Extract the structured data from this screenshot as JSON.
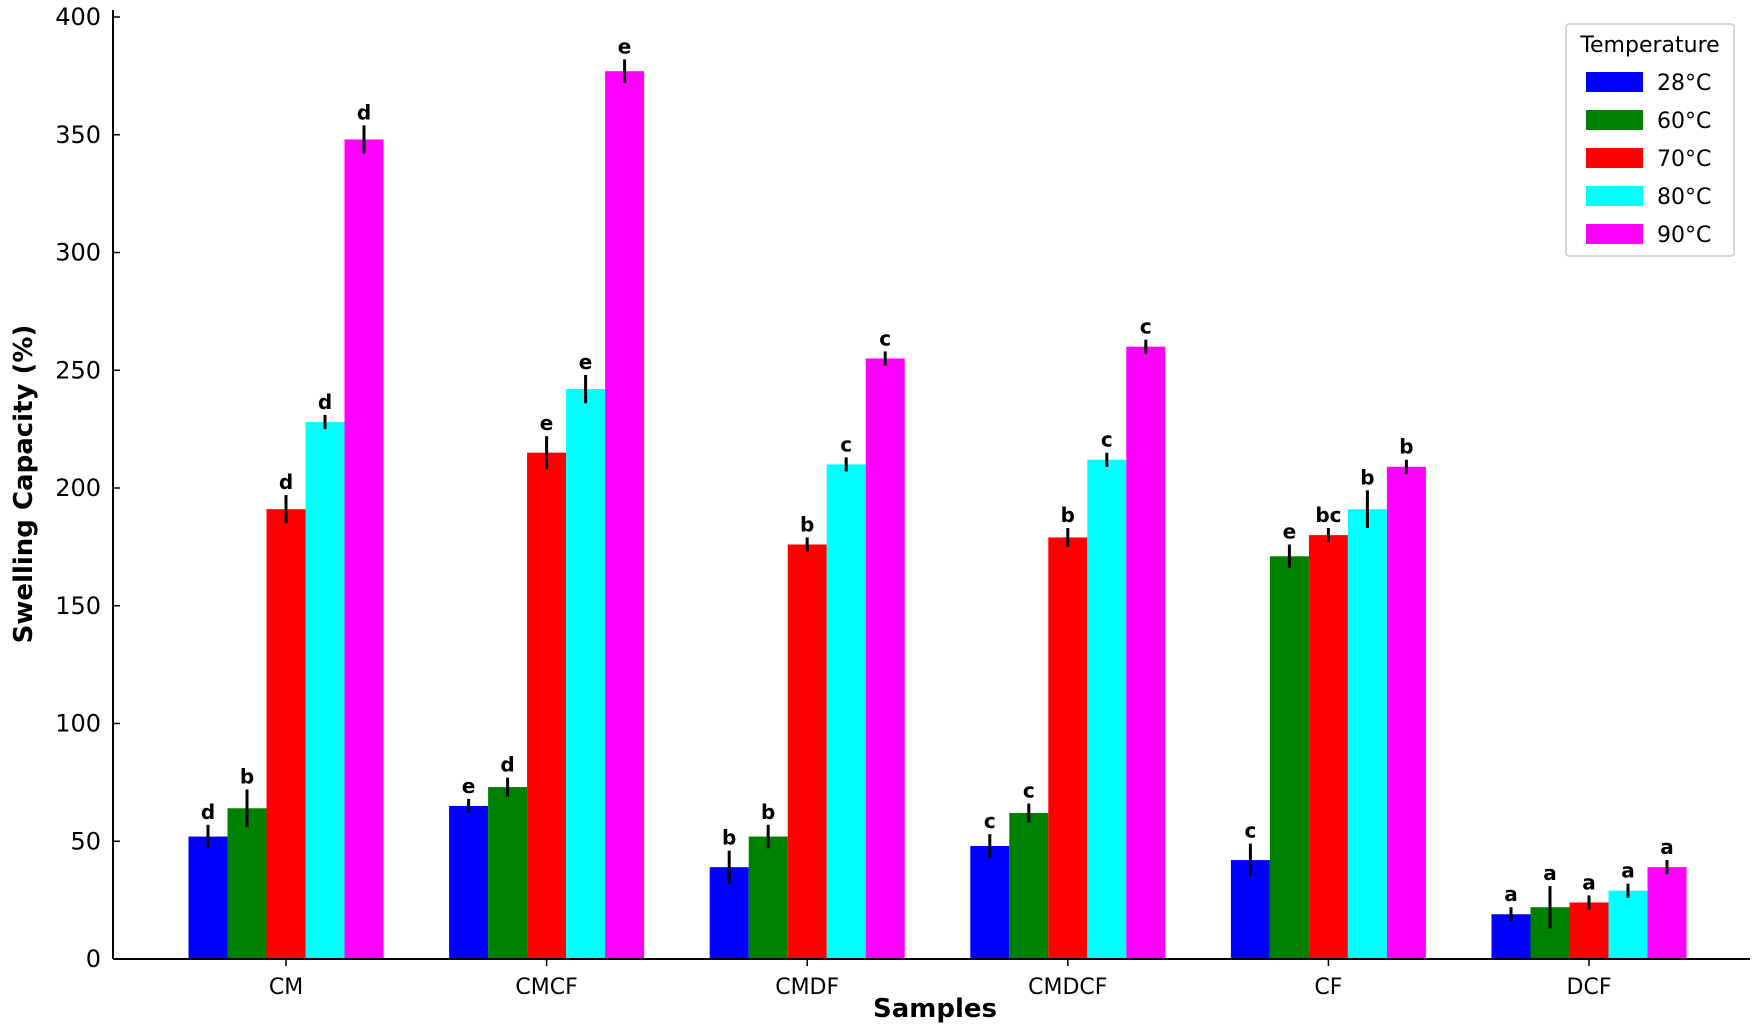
{
  "chart_data": {
    "type": "bar",
    "xlabel": "Samples",
    "ylabel": "Swelling Capacity (%)",
    "ylim": [
      0,
      400
    ],
    "yticks": [
      0,
      50,
      100,
      150,
      200,
      250,
      300,
      350,
      400
    ],
    "categories": [
      "CM",
      "CMCF",
      "CMDF",
      "CMDCF",
      "CF",
      "DCF"
    ],
    "legend": {
      "title": "Temperature",
      "placement": "top-right"
    },
    "grid": false,
    "series": [
      {
        "name": "28°C",
        "color": "#0000ff",
        "values": [
          52,
          65,
          39,
          48,
          42,
          19
        ],
        "errors": [
          5,
          3,
          7,
          5,
          7,
          3
        ],
        "labels": [
          "d",
          "e",
          "b",
          "c",
          "c",
          "a"
        ]
      },
      {
        "name": "60°C",
        "color": "#008000",
        "values": [
          64,
          73,
          52,
          62,
          171,
          22
        ],
        "errors": [
          8,
          4,
          5,
          4,
          5,
          9
        ],
        "labels": [
          "b",
          "d",
          "b",
          "c",
          "e",
          "a"
        ]
      },
      {
        "name": "70°C",
        "color": "#ff0000",
        "values": [
          191,
          215,
          176,
          179,
          180,
          24
        ],
        "errors": [
          6,
          7,
          3,
          4,
          3,
          3
        ],
        "labels": [
          "d",
          "e",
          "b",
          "b",
          "bc",
          "a"
        ]
      },
      {
        "name": "80°C",
        "color": "#00ffff",
        "values": [
          228,
          242,
          210,
          212,
          191,
          29
        ],
        "errors": [
          3,
          6,
          3,
          3,
          8,
          3
        ],
        "labels": [
          "d",
          "e",
          "c",
          "c",
          "b",
          "a"
        ]
      },
      {
        "name": "90°C",
        "color": "#ff00ff",
        "values": [
          348,
          377,
          255,
          260,
          209,
          39
        ],
        "errors": [
          6,
          5,
          3,
          3,
          3,
          3
        ],
        "labels": [
          "d",
          "e",
          "c",
          "c",
          "b",
          "a"
        ]
      }
    ]
  }
}
